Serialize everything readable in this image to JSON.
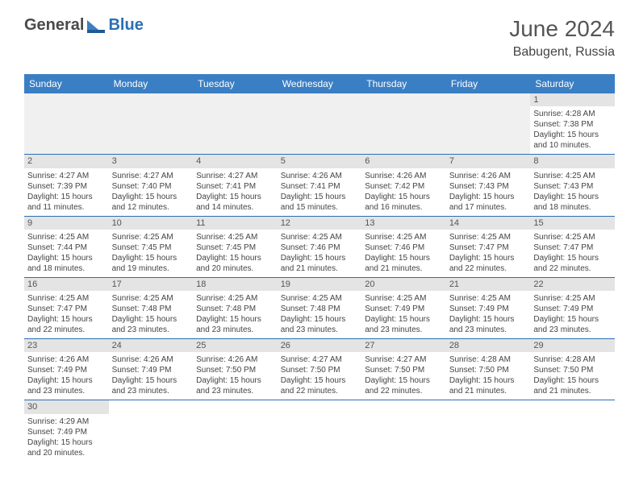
{
  "logo": {
    "text1": "General",
    "text2": "Blue"
  },
  "title": "June 2024",
  "location": "Babugent, Russia",
  "colors": {
    "header_bg": "#3a7fc4",
    "header_text": "#ffffff",
    "border": "#2a6fb5",
    "daynum_bg": "#e4e4e4",
    "empty_bg": "#f0f0f0",
    "logo_gray": "#4a4a4a",
    "logo_blue": "#2a6fb5"
  },
  "day_headers": [
    "Sunday",
    "Monday",
    "Tuesday",
    "Wednesday",
    "Thursday",
    "Friday",
    "Saturday"
  ],
  "weeks": [
    [
      null,
      null,
      null,
      null,
      null,
      null,
      {
        "n": "1",
        "sunrise": "4:28 AM",
        "sunset": "7:38 PM",
        "daylight": "15 hours and 10 minutes."
      }
    ],
    [
      {
        "n": "2",
        "sunrise": "4:27 AM",
        "sunset": "7:39 PM",
        "daylight": "15 hours and 11 minutes."
      },
      {
        "n": "3",
        "sunrise": "4:27 AM",
        "sunset": "7:40 PM",
        "daylight": "15 hours and 12 minutes."
      },
      {
        "n": "4",
        "sunrise": "4:27 AM",
        "sunset": "7:41 PM",
        "daylight": "15 hours and 14 minutes."
      },
      {
        "n": "5",
        "sunrise": "4:26 AM",
        "sunset": "7:41 PM",
        "daylight": "15 hours and 15 minutes."
      },
      {
        "n": "6",
        "sunrise": "4:26 AM",
        "sunset": "7:42 PM",
        "daylight": "15 hours and 16 minutes."
      },
      {
        "n": "7",
        "sunrise": "4:26 AM",
        "sunset": "7:43 PM",
        "daylight": "15 hours and 17 minutes."
      },
      {
        "n": "8",
        "sunrise": "4:25 AM",
        "sunset": "7:43 PM",
        "daylight": "15 hours and 18 minutes."
      }
    ],
    [
      {
        "n": "9",
        "sunrise": "4:25 AM",
        "sunset": "7:44 PM",
        "daylight": "15 hours and 18 minutes."
      },
      {
        "n": "10",
        "sunrise": "4:25 AM",
        "sunset": "7:45 PM",
        "daylight": "15 hours and 19 minutes."
      },
      {
        "n": "11",
        "sunrise": "4:25 AM",
        "sunset": "7:45 PM",
        "daylight": "15 hours and 20 minutes."
      },
      {
        "n": "12",
        "sunrise": "4:25 AM",
        "sunset": "7:46 PM",
        "daylight": "15 hours and 21 minutes."
      },
      {
        "n": "13",
        "sunrise": "4:25 AM",
        "sunset": "7:46 PM",
        "daylight": "15 hours and 21 minutes."
      },
      {
        "n": "14",
        "sunrise": "4:25 AM",
        "sunset": "7:47 PM",
        "daylight": "15 hours and 22 minutes."
      },
      {
        "n": "15",
        "sunrise": "4:25 AM",
        "sunset": "7:47 PM",
        "daylight": "15 hours and 22 minutes."
      }
    ],
    [
      {
        "n": "16",
        "sunrise": "4:25 AM",
        "sunset": "7:47 PM",
        "daylight": "15 hours and 22 minutes."
      },
      {
        "n": "17",
        "sunrise": "4:25 AM",
        "sunset": "7:48 PM",
        "daylight": "15 hours and 23 minutes."
      },
      {
        "n": "18",
        "sunrise": "4:25 AM",
        "sunset": "7:48 PM",
        "daylight": "15 hours and 23 minutes."
      },
      {
        "n": "19",
        "sunrise": "4:25 AM",
        "sunset": "7:48 PM",
        "daylight": "15 hours and 23 minutes."
      },
      {
        "n": "20",
        "sunrise": "4:25 AM",
        "sunset": "7:49 PM",
        "daylight": "15 hours and 23 minutes."
      },
      {
        "n": "21",
        "sunrise": "4:25 AM",
        "sunset": "7:49 PM",
        "daylight": "15 hours and 23 minutes."
      },
      {
        "n": "22",
        "sunrise": "4:25 AM",
        "sunset": "7:49 PM",
        "daylight": "15 hours and 23 minutes."
      }
    ],
    [
      {
        "n": "23",
        "sunrise": "4:26 AM",
        "sunset": "7:49 PM",
        "daylight": "15 hours and 23 minutes."
      },
      {
        "n": "24",
        "sunrise": "4:26 AM",
        "sunset": "7:49 PM",
        "daylight": "15 hours and 23 minutes."
      },
      {
        "n": "25",
        "sunrise": "4:26 AM",
        "sunset": "7:50 PM",
        "daylight": "15 hours and 23 minutes."
      },
      {
        "n": "26",
        "sunrise": "4:27 AM",
        "sunset": "7:50 PM",
        "daylight": "15 hours and 22 minutes."
      },
      {
        "n": "27",
        "sunrise": "4:27 AM",
        "sunset": "7:50 PM",
        "daylight": "15 hours and 22 minutes."
      },
      {
        "n": "28",
        "sunrise": "4:28 AM",
        "sunset": "7:50 PM",
        "daylight": "15 hours and 21 minutes."
      },
      {
        "n": "29",
        "sunrise": "4:28 AM",
        "sunset": "7:50 PM",
        "daylight": "15 hours and 21 minutes."
      }
    ],
    [
      {
        "n": "30",
        "sunrise": "4:29 AM",
        "sunset": "7:49 PM",
        "daylight": "15 hours and 20 minutes."
      },
      null,
      null,
      null,
      null,
      null,
      null
    ]
  ],
  "labels": {
    "sunrise": "Sunrise:",
    "sunset": "Sunset:",
    "daylight": "Daylight:"
  }
}
